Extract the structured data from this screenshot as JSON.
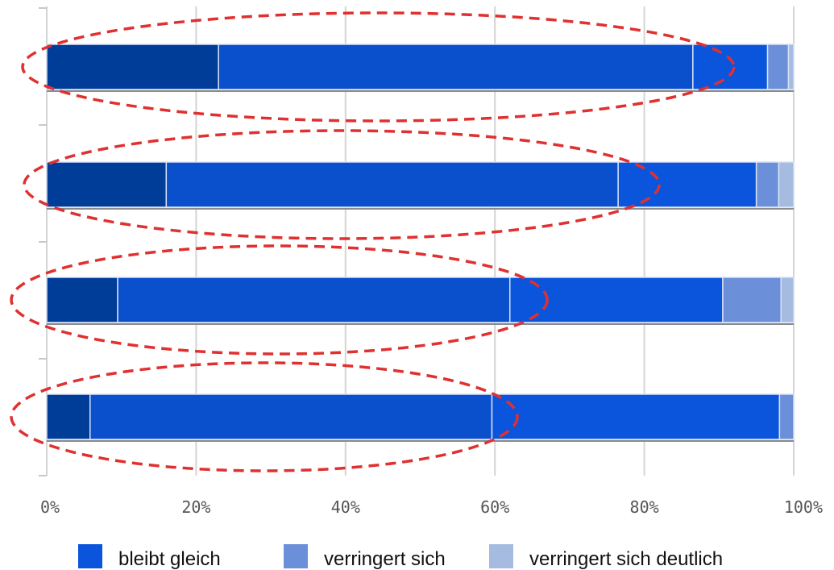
{
  "chart_data": {
    "type": "bar",
    "orientation": "horizontal",
    "stacked": true,
    "category_labels_shown": false,
    "xlim": [
      0,
      100
    ],
    "x_unit": "%",
    "xticks": [
      "0%",
      "20%",
      "40%",
      "60%",
      "80%",
      "100%"
    ],
    "grid": true,
    "legend_position": "bottom",
    "segment_colors": [
      "#003d99",
      "#0a4fcc",
      "#0b55dd",
      "#6b8fd8",
      "#a6bbe0"
    ],
    "bars": [
      {
        "segments": [
          23,
          63.5,
          10,
          2.8,
          0.7
        ]
      },
      {
        "segments": [
          16,
          60.5,
          18.5,
          3.0,
          2.0
        ]
      },
      {
        "segments": [
          9.5,
          52.5,
          28.5,
          7.8,
          1.7
        ]
      },
      {
        "segments": [
          5.8,
          53.8,
          38.5,
          1.9,
          0
        ]
      }
    ],
    "highlighted_span_pct": [
      92,
      82,
      67,
      63
    ],
    "highlight_color": "#e03030",
    "legend": [
      {
        "label": "bleibt gleich",
        "color": "#0b55dd"
      },
      {
        "label": "verringert sich",
        "color": "#6b8fd8"
      },
      {
        "label": "verringert sich deutlich",
        "color": "#a6bbe0"
      }
    ]
  }
}
